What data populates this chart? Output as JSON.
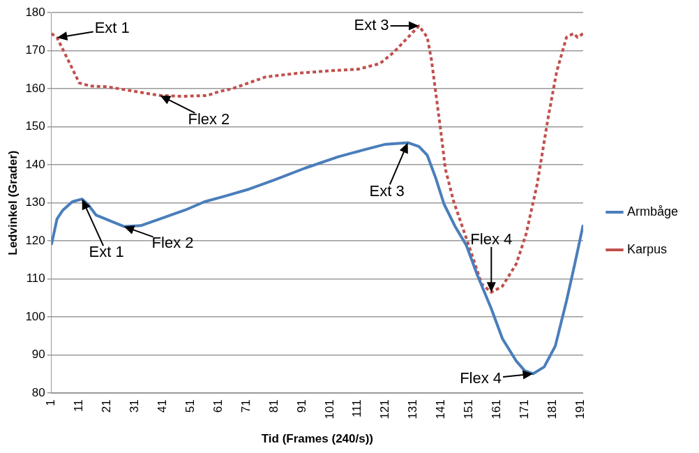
{
  "chart_data": {
    "type": "line",
    "xlabel": "Tid (Frames (240/s))",
    "ylabel": "Ledvinkel (Grader)",
    "xlim": [
      1,
      192
    ],
    "xticks": [
      1,
      11,
      21,
      31,
      41,
      51,
      61,
      71,
      81,
      91,
      101,
      111,
      121,
      131,
      141,
      151,
      161,
      171,
      181,
      191
    ],
    "ylim": [
      80,
      180
    ],
    "yticks": [
      80,
      90,
      100,
      110,
      120,
      130,
      140,
      150,
      160,
      170,
      180
    ],
    "grid": "y",
    "legend": "right",
    "marker": "none",
    "series": [
      {
        "name": "Armbåge",
        "color": "#4a7ebb",
        "line_style": "solid",
        "x": [
          1,
          3,
          5,
          8.5,
          12,
          14,
          17,
          23,
          27,
          33,
          40,
          49,
          56,
          63,
          72,
          81,
          92,
          104,
          113,
          121,
          129,
          133,
          136,
          139,
          142,
          146,
          150,
          154,
          159,
          163,
          168,
          171,
          174,
          178,
          182,
          186,
          189,
          192
        ],
        "values": [
          119,
          125.8,
          128,
          130.3,
          131,
          129.7,
          126.8,
          125,
          123.8,
          124,
          125.8,
          128.1,
          130.3,
          131.7,
          133.6,
          136,
          139.1,
          142.1,
          143.9,
          145.4,
          145.8,
          144.8,
          142.5,
          136.6,
          129.7,
          123.8,
          118.9,
          111,
          102.2,
          94.3,
          88.4,
          85.9,
          85.1,
          86.9,
          92.4,
          104.2,
          114,
          124.2
        ]
      },
      {
        "name": "Karpus",
        "color": "#c0504d",
        "line_style": "dotted",
        "x": [
          1,
          3,
          7,
          11,
          15,
          21,
          35,
          40,
          48,
          57,
          61,
          66,
          78,
          90,
          101,
          111,
          119,
          124,
          133,
          136,
          137.5,
          139,
          141,
          142.5,
          145.5,
          149.5,
          152.5,
          155.5,
          159,
          163,
          168,
          171.5,
          175.5,
          179.5,
          182.5,
          186,
          188.5,
          190,
          192
        ],
        "values": [
          174.5,
          173.4,
          167.5,
          161.5,
          160.7,
          160.5,
          158.8,
          158.2,
          158,
          158.2,
          159.2,
          160,
          163.1,
          164.1,
          164.7,
          165.1,
          166.6,
          169.6,
          176.5,
          173.5,
          167.6,
          159.2,
          148,
          138.9,
          130.3,
          121.8,
          115.4,
          108.7,
          106.5,
          108.1,
          114,
          121.8,
          135,
          152.7,
          164.5,
          173.5,
          174.5,
          173.5,
          174.5
        ]
      }
    ],
    "annotations": [
      {
        "text": "Ext 1",
        "x": 3,
        "y": 173.4
      },
      {
        "text": "Ext 1",
        "x": 12,
        "y": 131
      },
      {
        "text": "Flex 2",
        "x": 40,
        "y": 158.2
      },
      {
        "text": "Flex 2",
        "x": 27,
        "y": 123.8
      },
      {
        "text": "Ext 3",
        "x": 133,
        "y": 176.5
      },
      {
        "text": "Ext 3",
        "x": 129,
        "y": 145.8
      },
      {
        "text": "Flex 4",
        "x": 159,
        "y": 106.5
      },
      {
        "text": "Flex 4",
        "x": 174,
        "y": 85.1
      }
    ]
  }
}
